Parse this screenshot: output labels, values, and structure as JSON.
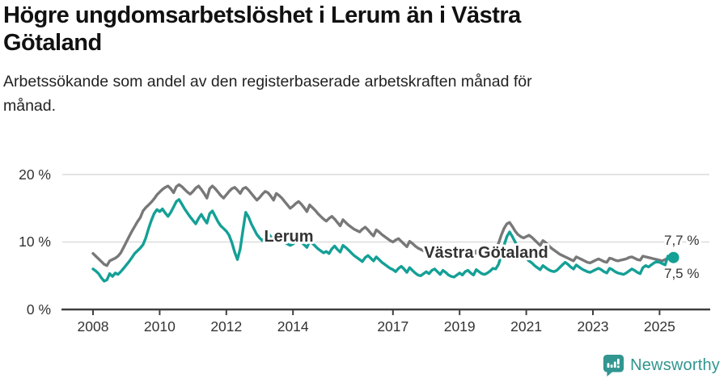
{
  "header": {
    "title_lines": [
      "Högre ungdomsarbetslöshet i Lerum än i Västra",
      "Götaland"
    ],
    "subtitle_lines": [
      "Arbetssökande som andel av den registerbaserade arbetskraften månad för",
      "månad."
    ]
  },
  "footer": {
    "brand": "Newsworthy",
    "logo_icon": "newsworthy-speech-bubble-bar-chart-icon",
    "brand_color": "#31968f"
  },
  "chart_data": {
    "type": "line",
    "title": "Högre ungdomsarbetslöshet i Lerum än i Västra Götaland",
    "subtitle": "Arbetssökande som andel av den registerbaserade arbetskraften månad för månad.",
    "grid": "horizontal-only",
    "legend_position": "inline-labels-on-lines",
    "x_axis": {
      "ticks": [
        2008,
        2010,
        2012,
        2014,
        2017,
        2019,
        2021,
        2023,
        2025
      ],
      "start": "2008-01",
      "end": "2025-06",
      "frequency": "monthly"
    },
    "y_axis": {
      "labels": [
        "20 %",
        "10 %",
        "0 %"
      ],
      "gridline_values": [
        20,
        10
      ],
      "unit": "%",
      "range": [
        0,
        20
      ]
    },
    "series": [
      {
        "name": "Lerum",
        "color": "#14a096",
        "end_label": "7,7 %",
        "end_value": 7.7,
        "has_end_dot": true,
        "values": [
          6.0,
          5.7,
          5.3,
          4.7,
          4.2,
          4.4,
          5.3,
          4.9,
          5.4,
          5.2,
          5.6,
          6.1,
          6.6,
          7.1,
          7.7,
          8.3,
          8.7,
          9.1,
          9.6,
          10.6,
          12.0,
          13.2,
          14.2,
          14.8,
          14.5,
          14.9,
          14.3,
          13.8,
          14.4,
          15.2,
          16.0,
          16.3,
          15.6,
          14.9,
          14.3,
          13.7,
          13.2,
          12.7,
          13.5,
          14.1,
          13.4,
          12.8,
          14.2,
          14.6,
          13.8,
          13.0,
          12.4,
          12.0,
          11.6,
          11.0,
          9.9,
          8.5,
          7.4,
          9.0,
          11.8,
          14.4,
          13.7,
          12.7,
          11.9,
          11.1,
          10.6,
          10.2,
          10.8,
          11.3,
          10.8,
          10.3,
          11.1,
          10.7,
          10.3,
          10.0,
          9.7,
          9.5,
          9.7,
          10.1,
          10.4,
          10.0,
          9.6,
          9.2,
          10.1,
          9.8,
          9.4,
          9.0,
          8.7,
          8.4,
          8.6,
          8.3,
          9.0,
          9.4,
          8.9,
          8.5,
          9.5,
          9.2,
          8.8,
          8.4,
          8.0,
          7.7,
          7.4,
          7.1,
          7.7,
          8.0,
          7.6,
          7.2,
          7.8,
          7.4,
          7.0,
          6.7,
          6.4,
          6.1,
          5.9,
          5.6,
          6.1,
          6.4,
          6.0,
          5.5,
          6.2,
          5.8,
          5.4,
          5.1,
          5.0,
          5.3,
          5.6,
          5.3,
          5.8,
          6.0,
          5.6,
          5.2,
          5.8,
          5.5,
          5.1,
          4.9,
          4.8,
          5.1,
          5.4,
          5.1,
          5.6,
          5.8,
          5.4,
          5.1,
          5.9,
          5.6,
          5.3,
          5.2,
          5.4,
          5.7,
          6.1,
          6.0,
          6.7,
          8.0,
          9.5,
          10.8,
          11.5,
          10.8,
          10.0,
          9.2,
          8.5,
          8.0,
          7.6,
          7.2,
          6.9,
          6.5,
          6.2,
          5.9,
          6.5,
          6.2,
          5.9,
          5.7,
          5.6,
          5.8,
          6.2,
          6.6,
          7.0,
          6.7,
          6.3,
          6.0,
          6.6,
          6.3,
          6.0,
          5.8,
          5.6,
          5.5,
          5.7,
          5.9,
          6.1,
          5.9,
          5.6,
          5.4,
          6.1,
          5.9,
          5.6,
          5.4,
          5.3,
          5.2,
          5.4,
          5.7,
          6.0,
          5.8,
          5.5,
          5.3,
          6.2,
          6.5,
          6.3,
          6.6,
          6.9,
          7.1,
          7.0,
          6.8,
          6.6,
          7.9,
          7.6,
          7.7
        ]
      },
      {
        "name": "Västra Götaland",
        "color": "#787878",
        "end_label": "7,5 %",
        "end_value": 7.5,
        "has_end_dot": false,
        "values": [
          8.3,
          7.9,
          7.5,
          7.1,
          6.7,
          6.5,
          7.2,
          7.4,
          7.6,
          7.9,
          8.4,
          9.2,
          10.0,
          10.8,
          11.6,
          12.3,
          13.0,
          13.6,
          14.6,
          15.1,
          15.5,
          15.9,
          16.4,
          17.0,
          17.4,
          17.8,
          18.1,
          18.3,
          17.9,
          17.3,
          18.2,
          18.5,
          18.2,
          17.8,
          17.4,
          17.1,
          17.5,
          18.0,
          18.3,
          17.8,
          17.2,
          16.5,
          17.9,
          18.3,
          17.9,
          17.4,
          16.9,
          16.5,
          17.0,
          17.5,
          17.9,
          18.1,
          17.7,
          17.2,
          17.9,
          18.1,
          17.7,
          17.2,
          16.7,
          16.2,
          16.6,
          17.1,
          17.5,
          17.3,
          16.8,
          16.2,
          17.2,
          16.9,
          16.5,
          16.0,
          15.5,
          15.0,
          15.3,
          15.7,
          16.0,
          15.6,
          15.1,
          14.5,
          15.5,
          15.1,
          14.7,
          14.2,
          13.8,
          13.4,
          13.1,
          13.5,
          13.8,
          13.4,
          12.9,
          12.4,
          13.3,
          12.9,
          12.5,
          12.2,
          11.9,
          11.7,
          11.5,
          11.9,
          12.2,
          11.8,
          11.3,
          10.9,
          11.8,
          11.5,
          11.1,
          10.8,
          10.5,
          10.2,
          10.0,
          10.3,
          10.5,
          10.1,
          9.7,
          9.3,
          10.1,
          9.8,
          9.4,
          9.1,
          8.9,
          8.7,
          8.6,
          8.9,
          9.1,
          8.8,
          8.4,
          8.1,
          8.9,
          8.7,
          8.4,
          8.2,
          8.0,
          7.9,
          8.1,
          8.4,
          8.6,
          8.3,
          8.0,
          7.8,
          8.7,
          8.5,
          8.3,
          8.2,
          8.2,
          8.5,
          8.8,
          9.1,
          9.8,
          11.0,
          12.0,
          12.7,
          12.9,
          12.3,
          11.6,
          11.1,
          10.8,
          10.6,
          10.8,
          11.0,
          10.7,
          10.3,
          9.9,
          9.5,
          10.2,
          9.9,
          9.5,
          9.1,
          8.8,
          8.5,
          8.2,
          8.0,
          7.8,
          7.6,
          7.4,
          7.2,
          7.8,
          7.6,
          7.4,
          7.2,
          7.0,
          6.9,
          7.1,
          7.3,
          7.5,
          7.3,
          7.1,
          7.0,
          7.6,
          7.5,
          7.3,
          7.2,
          7.3,
          7.4,
          7.5,
          7.7,
          7.8,
          7.6,
          7.4,
          7.3,
          7.9,
          7.8,
          7.7,
          7.6,
          7.5,
          7.4,
          7.3,
          7.2,
          7.4,
          7.6,
          7.6,
          7.5
        ]
      }
    ]
  }
}
